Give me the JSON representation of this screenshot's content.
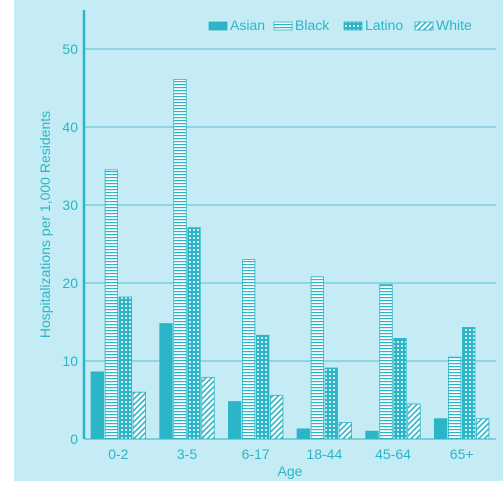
{
  "chart_data": {
    "type": "bar",
    "xlabel": "Age",
    "ylabel": "Hospitalizations per 1,000 Residents",
    "ylim": [
      0,
      55
    ],
    "yticks": [
      0,
      10,
      20,
      30,
      40,
      50
    ],
    "grid": true,
    "legend_position": "top-right",
    "categories": [
      "0-2",
      "3-5",
      "6-17",
      "18-44",
      "45-64",
      "65+"
    ],
    "series": [
      {
        "name": "Asian",
        "pattern": "solid",
        "values": [
          8.6,
          14.8,
          4.8,
          1.3,
          1.0,
          2.6
        ]
      },
      {
        "name": "Black",
        "pattern": "horizontal-lines",
        "values": [
          34.5,
          46.1,
          23.0,
          20.8,
          19.8,
          10.5
        ]
      },
      {
        "name": "Latino",
        "pattern": "dots",
        "values": [
          18.2,
          27.1,
          13.3,
          9.1,
          12.9,
          14.3
        ]
      },
      {
        "name": "White",
        "pattern": "diagonal-lines",
        "values": [
          6.0,
          7.9,
          5.6,
          2.1,
          4.5,
          2.6
        ]
      }
    ],
    "colors": {
      "background": "#c5ecf4",
      "bar": "#2bb5c6",
      "axis": "#2bb5c6",
      "text": "#2bb5c6"
    }
  }
}
